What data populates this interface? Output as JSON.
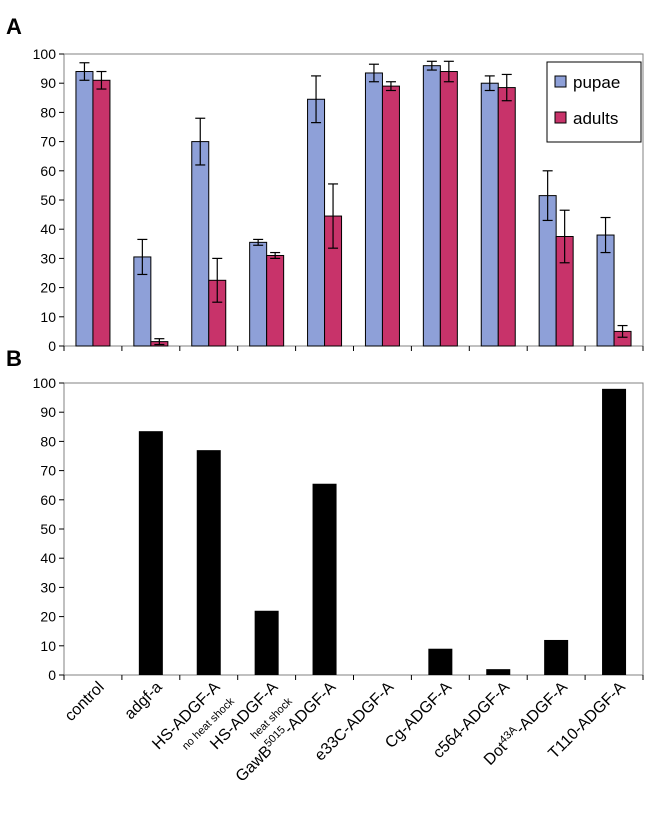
{
  "panels": {
    "a_label": "A",
    "b_label": "B"
  },
  "chart_data": [
    {
      "panel": "A",
      "type": "bar",
      "categories": [
        "control",
        "adgf-a",
        "HS-ADGF-A",
        "HS-ADGF-A",
        "GawB5015-ADGF-A",
        "e33C-ADGF-A",
        "Cg-ADGF-A",
        "c564-ADGF-A",
        "Dot43A-ADGF-A",
        "T110-ADGF-A"
      ],
      "series": [
        {
          "name": "pupae",
          "color": "#8ea0d8",
          "values": [
            94,
            30.5,
            70,
            35.5,
            84.5,
            93.5,
            96,
            90,
            51.5,
            38
          ],
          "errors": [
            3,
            6,
            8,
            1,
            8,
            3,
            1.5,
            2.5,
            8.5,
            6
          ]
        },
        {
          "name": "adults",
          "color": "#c8336a",
          "values": [
            91,
            1.5,
            22.5,
            31,
            44.5,
            89,
            94,
            88.5,
            37.5,
            5
          ],
          "errors": [
            3,
            1,
            7.5,
            1,
            11,
            1.5,
            3.5,
            4.5,
            9,
            2
          ]
        }
      ],
      "ylim": [
        0,
        100
      ],
      "yticks": [
        0,
        10,
        20,
        30,
        40,
        50,
        60,
        70,
        80,
        90,
        100
      ],
      "legend": "top-right",
      "grid": false,
      "error_bars": true
    },
    {
      "panel": "B",
      "type": "bar",
      "categories": [
        "control",
        "adgf-a",
        "HS-ADGF-A",
        "HS-ADGF-A",
        "GawB5015-ADGF-A",
        "e33C-ADGF-A",
        "Cg-ADGF-A",
        "c564-ADGF-A",
        "Dot43A-ADGF-A",
        "T110-ADGF-A"
      ],
      "series": [
        {
          "color": "#000000",
          "values": [
            0,
            83.5,
            77,
            22,
            65.5,
            0,
            9,
            2,
            12,
            98
          ]
        }
      ],
      "ylim": [
        0,
        100
      ],
      "yticks": [
        0,
        10,
        20,
        30,
        40,
        50,
        60,
        70,
        80,
        90,
        100
      ],
      "grid": false
    }
  ],
  "x_labels": [
    {
      "main": "control",
      "sub": ""
    },
    {
      "main": "adgf-a",
      "sub": ""
    },
    {
      "main": "HS-ADGF-A",
      "sub": "no heat shock"
    },
    {
      "main": "HS-ADGF-A",
      "sub": "heat shock"
    },
    {
      "main": "GawB",
      "sup": "5015",
      "rest": "-ADGF-A",
      "sub": ""
    },
    {
      "main": "e33C-ADGF-A",
      "sub": ""
    },
    {
      "main": "Cg-ADGF-A",
      "sub": ""
    },
    {
      "main": "c564-ADGF-A",
      "sub": ""
    },
    {
      "main": "Dot",
      "sup": "43A",
      "rest": "-ADGF-A",
      "sub": ""
    },
    {
      "main": "T110-ADGF-A",
      "sub": ""
    }
  ]
}
